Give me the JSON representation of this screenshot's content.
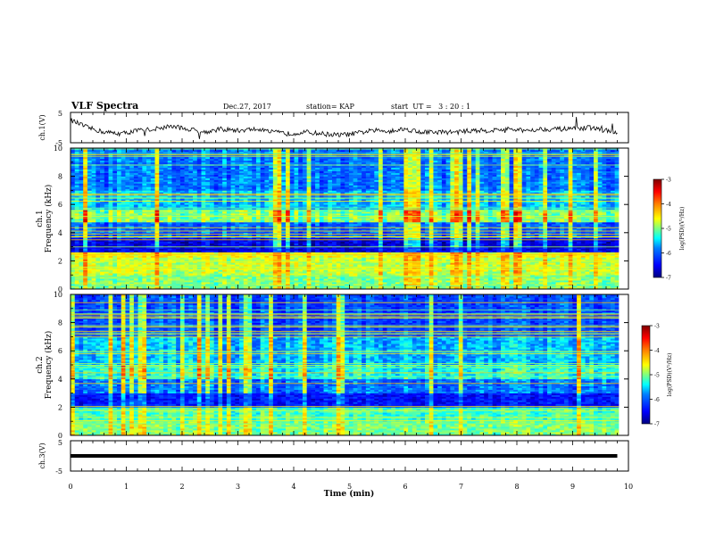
{
  "header": {
    "title": "VLF Spectra",
    "date": "Dec.27, 2017",
    "station": "station= KAP",
    "start": "start  UT =   3 : 20 : 1"
  },
  "chart_data": [
    {
      "type": "line",
      "panel": "ch1-waveform",
      "ylabel": "ch.1(V)",
      "ylim": [
        -5,
        5
      ],
      "y_ticks": [
        "5",
        "-5"
      ],
      "xlim": [
        0,
        10
      ],
      "x": [
        0,
        0.3,
        0.6,
        0.9,
        1.2,
        1.5,
        1.8,
        2.1,
        2.4,
        2.7,
        3.0,
        3.3,
        3.6,
        3.9,
        4.2,
        4.5,
        4.8,
        5.1,
        5.4,
        5.7,
        6.0,
        6.3,
        6.6,
        6.9,
        7.2,
        7.5,
        7.8,
        8.1,
        8.4,
        8.7,
        9.0,
        9.3,
        9.6,
        9.8
      ],
      "values": [
        2.5,
        0.0,
        -1.5,
        -2.0,
        -1.0,
        -0.5,
        0.5,
        -0.5,
        -1.5,
        -0.5,
        -1.0,
        -0.5,
        -1.5,
        -2.0,
        -1.5,
        -2.0,
        -2.5,
        -2.0,
        -1.0,
        -1.0,
        -0.5,
        -1.5,
        -1.5,
        -1.5,
        -1.0,
        -1.0,
        -0.5,
        -1.0,
        -0.5,
        -0.5,
        -0.5,
        0.0,
        -1.0,
        -2.0
      ]
    },
    {
      "type": "heatmap",
      "panel": "ch1-spectrogram",
      "ylabel": "ch.1\nFrequency (kHz)",
      "ylim": [
        0,
        10
      ],
      "y_ticks": [
        "0",
        "2",
        "4",
        "6",
        "8",
        "10"
      ],
      "xlim": [
        0,
        10
      ],
      "colorbar": {
        "label": "log(PSD)(V²/Hz)",
        "ticks": [
          "-3",
          "-4",
          "-5",
          "-6",
          "-7"
        ],
        "range": [
          -7,
          -3
        ]
      },
      "bands": [
        {
          "f_start": 0.0,
          "f_end": 1.0,
          "level": -5.0
        },
        {
          "f_start": 1.0,
          "f_end": 2.2,
          "level": -4.8
        },
        {
          "f_start": 2.2,
          "f_end": 2.6,
          "level": -4.6
        },
        {
          "f_start": 2.6,
          "f_end": 3.6,
          "level": -6.6
        },
        {
          "f_start": 3.6,
          "f_end": 4.8,
          "level": -6.0
        },
        {
          "f_start": 4.8,
          "f_end": 5.6,
          "level": -5.0
        },
        {
          "f_start": 5.6,
          "f_end": 7.0,
          "level": -5.6
        },
        {
          "f_start": 7.0,
          "f_end": 10.0,
          "level": -5.9
        }
      ]
    },
    {
      "type": "heatmap",
      "panel": "ch2-spectrogram",
      "ylabel": "ch.2\nFrequency (kHz)",
      "ylim": [
        0,
        10
      ],
      "y_ticks": [
        "0",
        "2",
        "4",
        "6",
        "8",
        "10"
      ],
      "xlim": [
        0,
        10
      ],
      "colorbar": {
        "label": "log(PSD)(V²/Hz)",
        "ticks": [
          "-3",
          "-4",
          "-5",
          "-6",
          "-7"
        ],
        "range": [
          -7,
          -3
        ]
      },
      "bands": [
        {
          "f_start": 0.0,
          "f_end": 1.0,
          "level": -5.0
        },
        {
          "f_start": 1.0,
          "f_end": 2.0,
          "level": -5.2
        },
        {
          "f_start": 2.0,
          "f_end": 3.0,
          "level": -6.4
        },
        {
          "f_start": 3.0,
          "f_end": 4.0,
          "level": -5.9
        },
        {
          "f_start": 4.0,
          "f_end": 5.0,
          "level": -5.3
        },
        {
          "f_start": 5.0,
          "f_end": 7.0,
          "level": -5.6
        },
        {
          "f_start": 7.0,
          "f_end": 10.0,
          "level": -6.1
        }
      ]
    },
    {
      "type": "line",
      "panel": "ch3-waveform",
      "ylabel": "ch.3(V)",
      "ylim": [
        -5,
        5
      ],
      "y_ticks": [
        "5",
        "-5"
      ],
      "xlim": [
        0,
        10
      ],
      "x": [
        0,
        9.8
      ],
      "values": [
        0,
        0
      ]
    }
  ],
  "x_axis": {
    "label": "Time (min)",
    "ticks": [
      "0",
      "1",
      "2",
      "3",
      "4",
      "5",
      "6",
      "7",
      "8",
      "9",
      "10"
    ]
  },
  "colors": {
    "background": "#ffffff",
    "axis": "#000000",
    "colormap": [
      "#00007f",
      "#0000ff",
      "#007fff",
      "#00ffff",
      "#7fff7f",
      "#ffff00",
      "#ff7f00",
      "#ff0000",
      "#7f0000"
    ]
  }
}
